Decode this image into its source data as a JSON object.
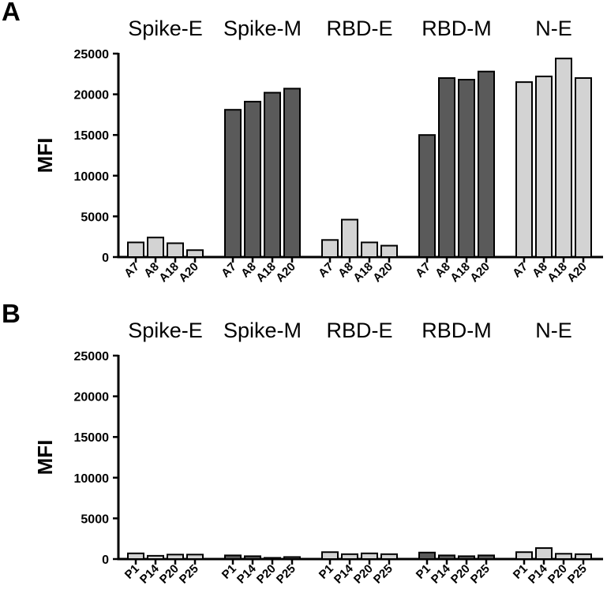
{
  "chart_data": [
    {
      "type": "bar",
      "panel_label": "A",
      "ylabel": "MFI",
      "ylim": [
        0,
        25000
      ],
      "yticks": [
        "0",
        "5000",
        "10000",
        "15000",
        "20000",
        "25000"
      ],
      "groups": [
        {
          "name": "Spike-E",
          "color": "#d3d3d3",
          "categories": [
            "A7",
            "A8",
            "A18",
            "A20"
          ],
          "values": [
            1800,
            2400,
            1700,
            850
          ]
        },
        {
          "name": "Spike-M",
          "color": "#5a5a5a",
          "categories": [
            "A7",
            "A8",
            "A18",
            "A20"
          ],
          "values": [
            18100,
            19100,
            20200,
            20700
          ]
        },
        {
          "name": "RBD-E",
          "color": "#d3d3d3",
          "categories": [
            "A7",
            "A8",
            "A18",
            "A20"
          ],
          "values": [
            2100,
            4600,
            1800,
            1400
          ]
        },
        {
          "name": "RBD-M",
          "color": "#5a5a5a",
          "categories": [
            "A7",
            "A8",
            "A18",
            "A20"
          ],
          "values": [
            15000,
            22000,
            21800,
            22800
          ]
        },
        {
          "name": "N-E",
          "color": "#d3d3d3",
          "categories": [
            "A7",
            "A8",
            "A18",
            "A20"
          ],
          "values": [
            21500,
            22200,
            24400,
            22000
          ]
        }
      ]
    },
    {
      "type": "bar",
      "panel_label": "B",
      "ylabel": "MFI",
      "ylim": [
        0,
        25000
      ],
      "yticks": [
        "0",
        "5000",
        "10000",
        "15000",
        "20000",
        "25000"
      ],
      "groups": [
        {
          "name": "Spike-E",
          "color": "#d3d3d3",
          "categories": [
            "P1",
            "P14",
            "P20",
            "P25"
          ],
          "values": [
            700,
            400,
            550,
            550
          ]
        },
        {
          "name": "Spike-M",
          "color": "#5a5a5a",
          "categories": [
            "P1",
            "P14",
            "P20",
            "P25"
          ],
          "values": [
            450,
            350,
            150,
            250
          ]
        },
        {
          "name": "RBD-E",
          "color": "#d3d3d3",
          "categories": [
            "P1",
            "P14",
            "P20",
            "P25"
          ],
          "values": [
            850,
            600,
            700,
            600
          ]
        },
        {
          "name": "RBD-M",
          "color": "#5a5a5a",
          "categories": [
            "P1",
            "P14",
            "P20",
            "P25"
          ],
          "values": [
            800,
            450,
            350,
            450
          ]
        },
        {
          "name": "N-E",
          "color": "#d3d3d3",
          "categories": [
            "P1",
            "P14",
            "P20",
            "P25"
          ],
          "values": [
            850,
            1350,
            650,
            600
          ]
        }
      ]
    }
  ]
}
